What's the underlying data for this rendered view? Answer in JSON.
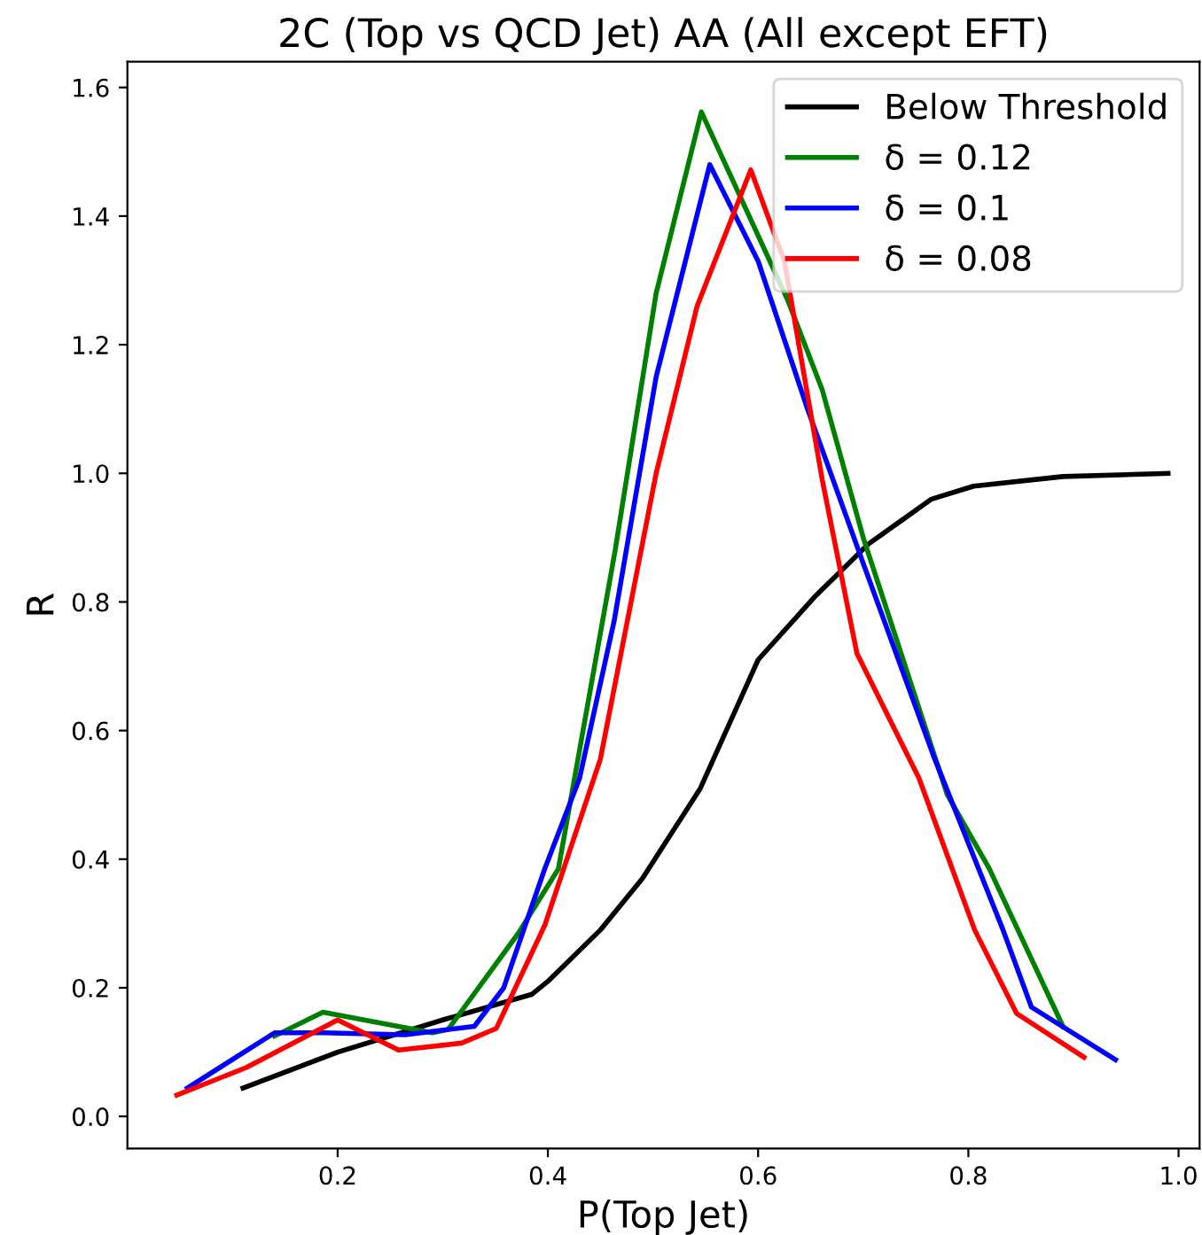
{
  "chart_data": {
    "type": "line",
    "title": "2C (Top vs QCD Jet) AA (All except EFT)",
    "xlabel": "P(Top Jet)",
    "ylabel": "R",
    "xlim": [
      0.0,
      1.02
    ],
    "ylim": [
      -0.05,
      1.64
    ],
    "xticks": [
      0.2,
      0.4,
      0.6,
      0.8,
      {
        "value": 1,
        "label": "1.0"
      }
    ],
    "yticks": [
      {
        "value": 0,
        "label": "0.0"
      },
      0.2,
      0.4,
      0.6,
      0.8,
      {
        "value": 1,
        "label": "1.0"
      },
      1.2,
      1.4,
      1.6
    ],
    "grid": false,
    "legend": "top right",
    "line_style": "solid",
    "marker": "none",
    "series": [
      {
        "name": "Below Threshold",
        "color": "#000000",
        "x": [
          0.11,
          0.2,
          0.3,
          0.385,
          0.4,
          0.45,
          0.49,
          0.545,
          0.6,
          0.655,
          0.705,
          0.765,
          0.805,
          0.89,
          0.99
        ],
        "values": [
          0.044,
          0.1,
          0.15,
          0.19,
          0.21,
          0.29,
          0.37,
          0.51,
          0.71,
          0.81,
          0.89,
          0.96,
          0.98,
          0.995,
          1.0
        ]
      },
      {
        "name": "δ = 0.12",
        "color": "#008000",
        "x": [
          0.14,
          0.186,
          0.29,
          0.305,
          0.372,
          0.41,
          0.464,
          0.503,
          0.546,
          0.628,
          0.661,
          0.7,
          0.78,
          0.82,
          0.89
        ],
        "values": [
          0.125,
          0.162,
          0.13,
          0.135,
          0.285,
          0.385,
          0.88,
          1.28,
          1.562,
          1.27,
          1.13,
          0.9,
          0.5,
          0.385,
          0.14
        ]
      },
      {
        "name": "δ = 0.1",
        "color": "#0000ff",
        "x": [
          0.057,
          0.14,
          0.187,
          0.264,
          0.33,
          0.358,
          0.397,
          0.43,
          0.463,
          0.503,
          0.554,
          0.6,
          0.647,
          0.7,
          0.767,
          0.833,
          0.86,
          0.94
        ],
        "values": [
          0.044,
          0.13,
          0.13,
          0.127,
          0.14,
          0.2,
          0.385,
          0.525,
          0.77,
          1.15,
          1.48,
          1.33,
          1.1,
          0.86,
          0.56,
          0.29,
          0.17,
          0.088
        ]
      },
      {
        "name": "δ = 0.08",
        "color": "#ff0000",
        "x": [
          0.047,
          0.113,
          0.2,
          0.258,
          0.318,
          0.351,
          0.397,
          0.45,
          0.503,
          0.542,
          0.593,
          0.625,
          0.661,
          0.694,
          0.753,
          0.806,
          0.846,
          0.91
        ],
        "values": [
          0.033,
          0.076,
          0.15,
          0.103,
          0.114,
          0.137,
          0.297,
          0.556,
          1.0,
          1.26,
          1.472,
          1.33,
          0.99,
          0.72,
          0.526,
          0.29,
          0.16,
          0.092
        ]
      }
    ]
  }
}
